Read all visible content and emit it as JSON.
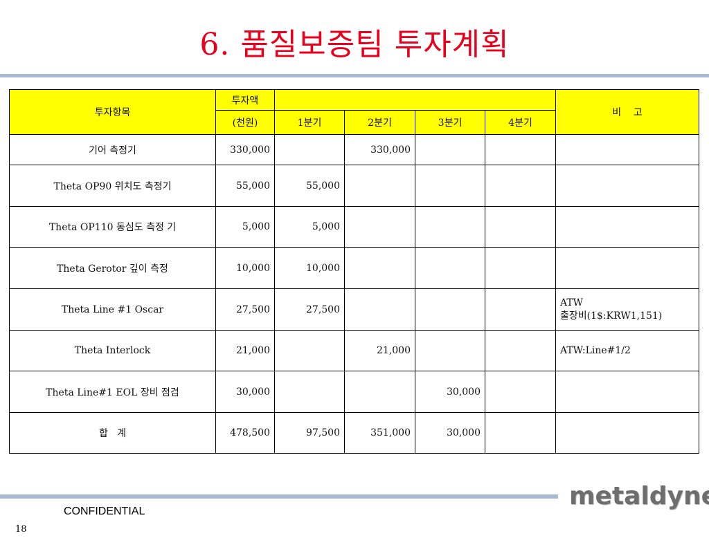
{
  "slide": {
    "title": "6. 품질보증팀 투자계획",
    "confidential": "CONFIDENTIAL",
    "page_number": "18",
    "logo_text": "metaldyne"
  },
  "table": {
    "headers": {
      "item": "투자항목",
      "amount_line1": "투자액",
      "amount_line2": "(천원)",
      "q1": "1분기",
      "q2": "2분기",
      "q3": "3분기",
      "q4": "4분기",
      "remarks": "비    고"
    },
    "rows": [
      {
        "item": "기어 측정기",
        "amount": "330,000",
        "q1": "",
        "q2": "330,000",
        "q3": "",
        "q4": "",
        "remarks": ""
      },
      {
        "item": "Theta OP90 위치도 측정기",
        "amount": "55,000",
        "q1": "55,000",
        "q2": "",
        "q3": "",
        "q4": "",
        "remarks": ""
      },
      {
        "item": "Theta OP110 동심도 측정 기",
        "amount": "5,000",
        "q1": "5,000",
        "q2": "",
        "q3": "",
        "q4": "",
        "remarks": ""
      },
      {
        "item": "Theta Gerotor 깊이 측정",
        "amount": "10,000",
        "q1": "10,000",
        "q2": "",
        "q3": "",
        "q4": "",
        "remarks": ""
      },
      {
        "item": "Theta Line #1 Oscar",
        "amount": "27,500",
        "q1": "27,500",
        "q2": "",
        "q3": "",
        "q4": "",
        "remarks_line1": "ATW",
        "remarks_line2": "출장비(1$:KRW1,151)"
      },
      {
        "item": "Theta Interlock",
        "amount": "21,000",
        "q1": "",
        "q2": "21,000",
        "q3": "",
        "q4": "",
        "remarks": "ATW:Line#1/2"
      },
      {
        "item": "Theta Line#1 EOL 장비 점검",
        "amount": "30,000",
        "q1": "",
        "q2": "",
        "q3": "30,000",
        "q4": "",
        "remarks": ""
      },
      {
        "item": "합   계",
        "amount": "478,500",
        "q1": "97,500",
        "q2": "351,000",
        "q3": "30,000",
        "q4": "",
        "remarks": ""
      }
    ]
  },
  "colors": {
    "title": "#e8001c",
    "header_fill": "#ffff00",
    "rule": "#a9b9d3"
  }
}
